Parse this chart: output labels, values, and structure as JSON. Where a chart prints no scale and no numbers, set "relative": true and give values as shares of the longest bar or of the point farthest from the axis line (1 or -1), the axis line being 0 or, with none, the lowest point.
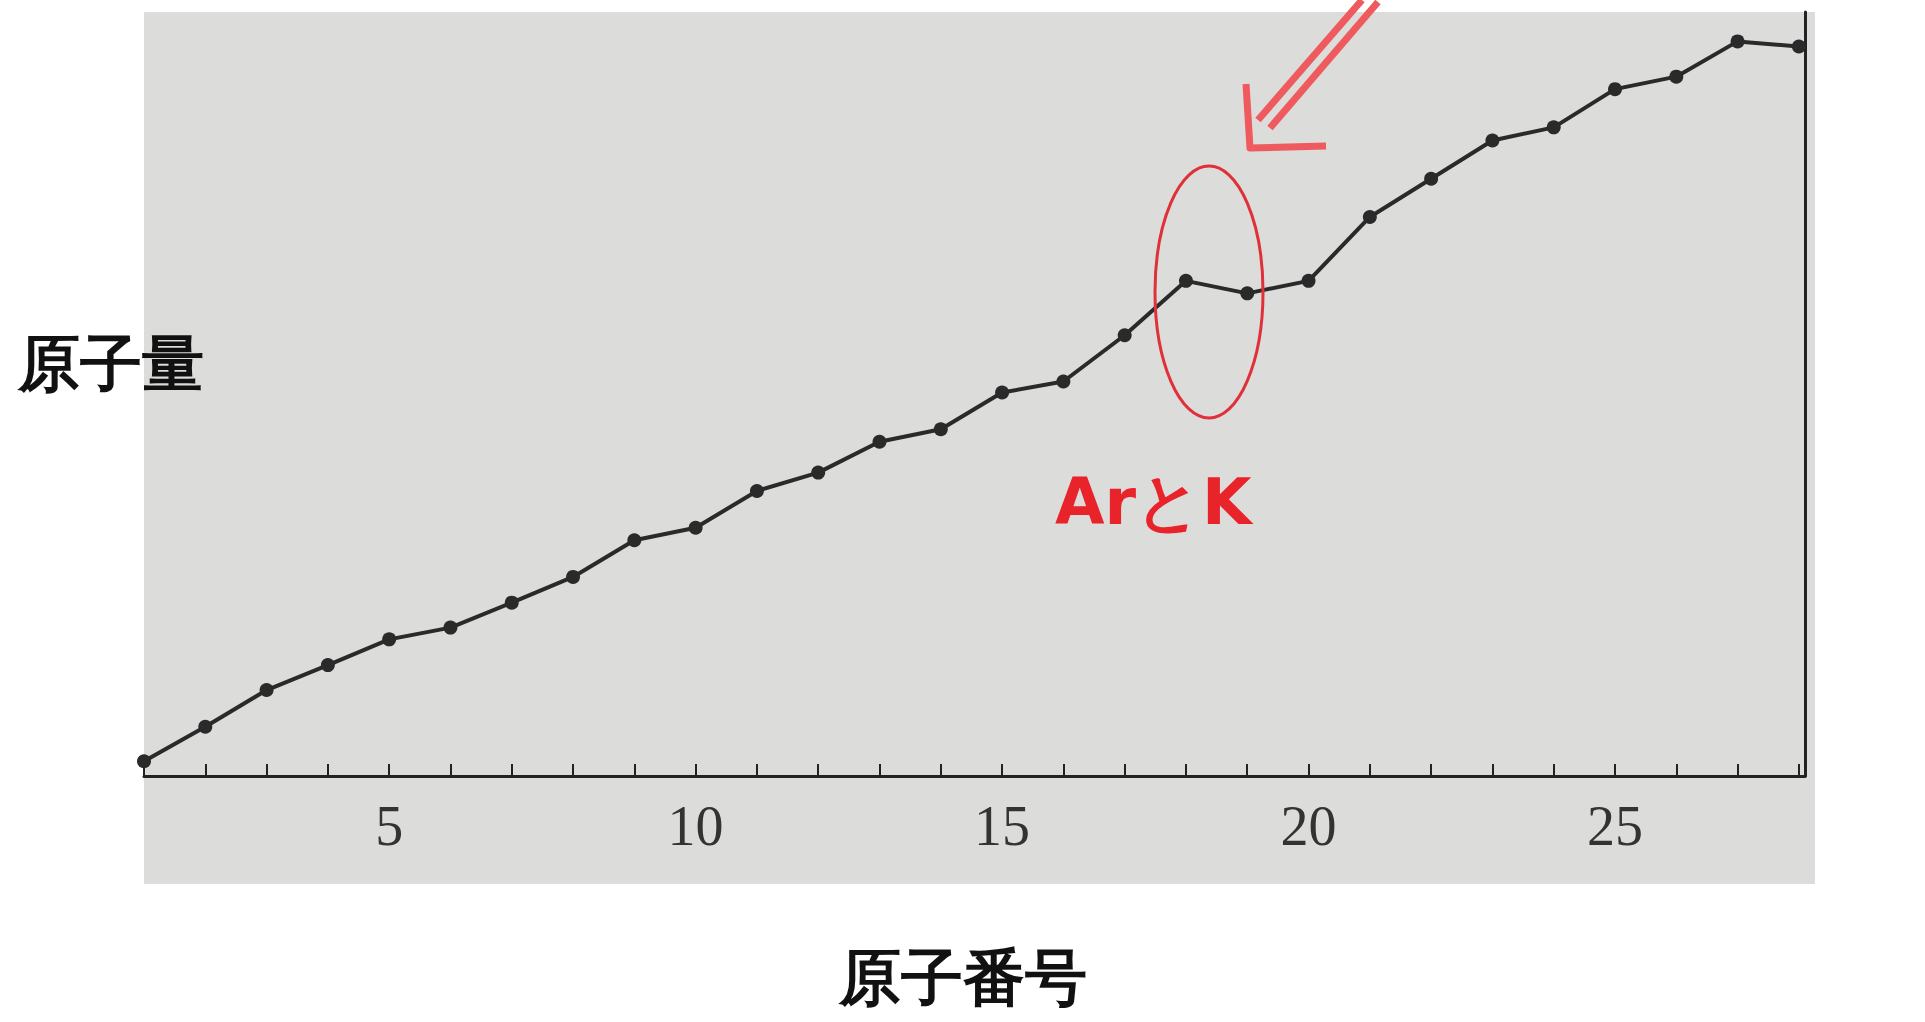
{
  "chart_data": {
    "type": "line",
    "relative": true,
    "xlabel": "原子番号",
    "ylabel": "原子量",
    "x": [
      1,
      2,
      3,
      4,
      5,
      6,
      7,
      8,
      9,
      10,
      11,
      12,
      13,
      14,
      15,
      16,
      17,
      18,
      19,
      20,
      21,
      22,
      23,
      24,
      25,
      26,
      27,
      28
    ],
    "series": [
      {
        "color": "#2a2a2a",
        "values": [
          0.02,
          0.067,
          0.117,
          0.151,
          0.186,
          0.202,
          0.236,
          0.271,
          0.321,
          0.338,
          0.388,
          0.413,
          0.455,
          0.472,
          0.522,
          0.537,
          0.6,
          0.674,
          0.657,
          0.674,
          0.761,
          0.813,
          0.865,
          0.883,
          0.935,
          0.952,
          1,
          0.993
        ]
      }
    ],
    "xlim": [
      1,
      28.1
    ],
    "xticks": [
      {
        "value": 1,
        "label": null
      },
      {
        "value": 2,
        "label": null
      },
      {
        "value": 3,
        "label": null
      },
      {
        "value": 4,
        "label": null
      },
      5,
      {
        "value": 6,
        "label": null
      },
      {
        "value": 7,
        "label": null
      },
      {
        "value": 8,
        "label": null
      },
      {
        "value": 9,
        "label": null
      },
      10,
      {
        "value": 11,
        "label": null
      },
      {
        "value": 12,
        "label": null
      },
      {
        "value": 13,
        "label": null
      },
      {
        "value": 14,
        "label": null
      },
      15,
      {
        "value": 16,
        "label": null
      },
      {
        "value": 17,
        "label": null
      },
      {
        "value": 18,
        "label": null
      },
      {
        "value": 19,
        "label": null
      },
      20,
      {
        "value": 21,
        "label": null
      },
      {
        "value": 22,
        "label": null
      },
      {
        "value": 23,
        "label": null
      },
      {
        "value": 24,
        "label": null
      },
      25,
      {
        "value": 26,
        "label": null
      },
      {
        "value": 27,
        "label": null
      },
      {
        "value": 28,
        "label": null
      }
    ],
    "annotations": [
      "ArとK"
    ],
    "marker": "circle",
    "line_style": "solid"
  }
}
